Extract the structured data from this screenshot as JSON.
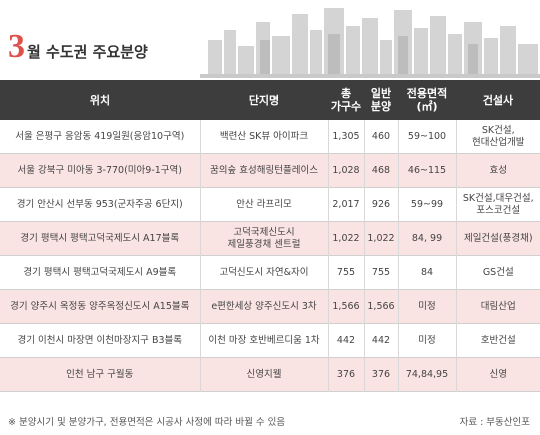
{
  "title": {
    "number": "3",
    "text": "월 수도권 주요분양"
  },
  "columns": [
    "위치",
    "단지명",
    "총\n가구수",
    "일반\n분양",
    "전용면적\n(㎡)",
    "건설사"
  ],
  "rows": [
    {
      "location": "서울 은평구 응암동 419일원(응암10구역)",
      "complex": "백련산 SK뷰 아이파크",
      "total": "1,305",
      "general": "460",
      "area": "59~100",
      "builder": "SK건설,\n현대산업개발"
    },
    {
      "location": "서울 강북구 미아동 3-770(미아9-1구역)",
      "complex": "꿈의숲 효성해링턴플레이스",
      "total": "1,028",
      "general": "468",
      "area": "46~115",
      "builder": "효성"
    },
    {
      "location": "경기 안산시 선부동 953(군자주공 6단지)",
      "complex": "안산 라프리모",
      "total": "2,017",
      "general": "926",
      "area": "59~99",
      "builder": "SK건설,대우건설,\n포스코건설"
    },
    {
      "location": "경기 평택시 평택고덕국제도시 A17블록",
      "complex": "고덕국제신도시\n제일풍경채 센트럴",
      "total": "1,022",
      "general": "1,022",
      "area": "84, 99",
      "builder": "제일건설(풍경채)"
    },
    {
      "location": "경기 평택시 평택고덕국제도시 A9블록",
      "complex": "고덕신도시 자연&자이",
      "total": "755",
      "general": "755",
      "area": "84",
      "builder": "GS건설"
    },
    {
      "location": "경기 양주시 옥정동 양주옥정신도시 A15블록",
      "complex": "e편한세상 양주신도시 3차",
      "total": "1,566",
      "general": "1,566",
      "area": "미정",
      "builder": "대림산업"
    },
    {
      "location": "경기 이천시 마장면 이천마장지구 B3블록",
      "complex": "이천 마장 호반베르디움 1차",
      "total": "442",
      "general": "442",
      "area": "미정",
      "builder": "호반건설"
    },
    {
      "location": "인천 남구 구월동",
      "complex": "신영지웰",
      "total": "376",
      "general": "376",
      "area": "74,84,95",
      "builder": "신영"
    }
  ],
  "footer": {
    "note": "※ 분양시기 및 분양가구, 전용면적은 시공사 사정에 따라 바뀔 수 있음",
    "source": "자료 : 부동산인포"
  },
  "colors": {
    "accent": "#e0504a",
    "header_bg": "#3d3d3d",
    "row_pink": "#fae3e3"
  }
}
